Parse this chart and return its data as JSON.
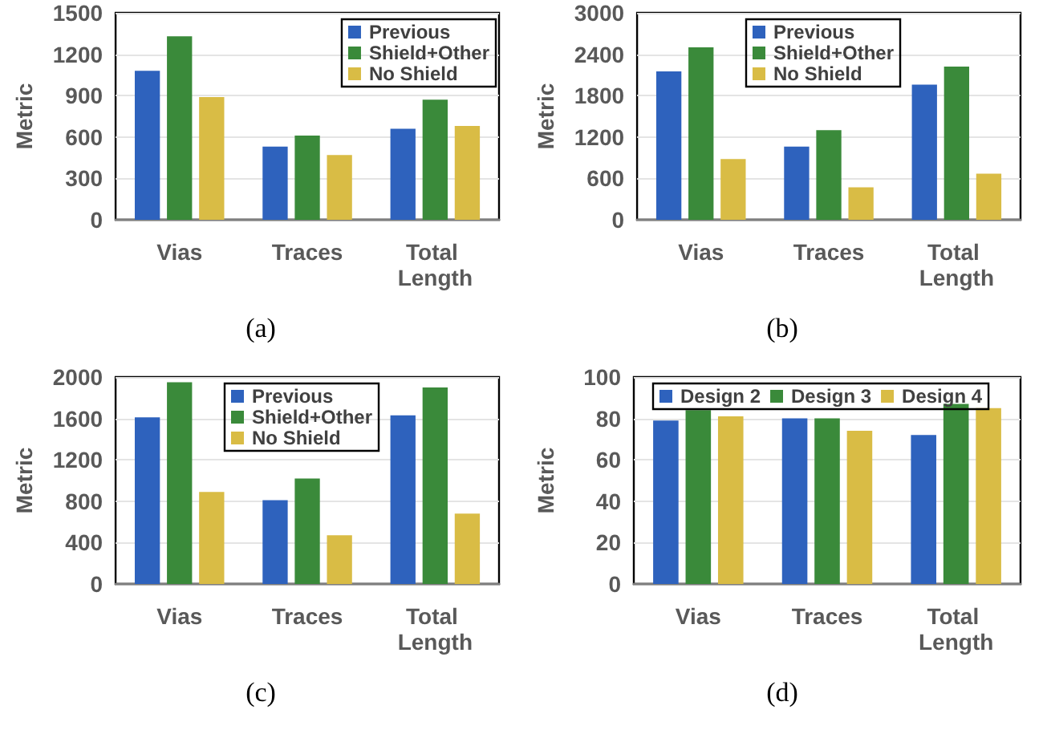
{
  "chart_data": [
    {
      "type": "bar",
      "ylabel": "Metric",
      "categories": [
        "Vias",
        "Traces",
        "Total Length"
      ],
      "series": [
        {
          "name": "Previous",
          "color": "#2e62bd",
          "values": [
            1080,
            530,
            660
          ]
        },
        {
          "name": "Shield+Other",
          "color": "#3a8a3a",
          "values": [
            1330,
            610,
            870
          ]
        },
        {
          "name": "No Shield",
          "color": "#d9bc45",
          "values": [
            890,
            470,
            680
          ]
        }
      ],
      "ylim": [
        0,
        1500
      ],
      "yticks": [
        0,
        300,
        600,
        900,
        1200,
        1500
      ],
      "grid": "y",
      "legend": "top right",
      "annotations": [
        "(a)"
      ]
    },
    {
      "type": "bar",
      "ylabel": "Metric",
      "categories": [
        "Vias",
        "Traces",
        "Total Length"
      ],
      "series": [
        {
          "name": "Previous",
          "color": "#2e62bd",
          "values": [
            2150,
            1060,
            1960
          ]
        },
        {
          "name": "Shield+Other",
          "color": "#3a8a3a",
          "values": [
            2500,
            1300,
            2220
          ]
        },
        {
          "name": "No Shield",
          "color": "#d9bc45",
          "values": [
            880,
            470,
            670
          ]
        }
      ],
      "ylim": [
        0,
        3000
      ],
      "yticks": [
        0,
        600,
        1200,
        1800,
        2400,
        3000
      ],
      "grid": "y",
      "legend": "top",
      "annotations": [
        "(b)"
      ]
    },
    {
      "type": "bar",
      "ylabel": "Metric",
      "categories": [
        "Vias",
        "Traces",
        "Total Length"
      ],
      "series": [
        {
          "name": "Previous",
          "color": "#2e62bd",
          "values": [
            1610,
            810,
            1630
          ]
        },
        {
          "name": "Shield+Other",
          "color": "#3a8a3a",
          "values": [
            1950,
            1020,
            1900
          ]
        },
        {
          "name": "No Shield",
          "color": "#d9bc45",
          "values": [
            890,
            470,
            680
          ]
        }
      ],
      "ylim": [
        0,
        2000
      ],
      "yticks": [
        0,
        400,
        800,
        1200,
        1600,
        2000
      ],
      "grid": "y",
      "legend": "top",
      "annotations": [
        "(c)"
      ]
    },
    {
      "type": "bar",
      "ylabel": "Metric",
      "categories": [
        "Vias",
        "Traces",
        "Total Length"
      ],
      "series": [
        {
          "name": "Design 2",
          "color": "#2e62bd",
          "values": [
            79,
            80,
            72
          ]
        },
        {
          "name": "Design 3",
          "color": "#3a8a3a",
          "values": [
            84,
            80,
            87
          ]
        },
        {
          "name": "Design 4",
          "color": "#d9bc45",
          "values": [
            81,
            74,
            85
          ]
        }
      ],
      "ylim": [
        0,
        100
      ],
      "yticks": [
        0,
        20,
        40,
        60,
        80,
        100
      ],
      "grid": "y",
      "legend": "top",
      "annotations": [
        "(d)"
      ]
    }
  ]
}
